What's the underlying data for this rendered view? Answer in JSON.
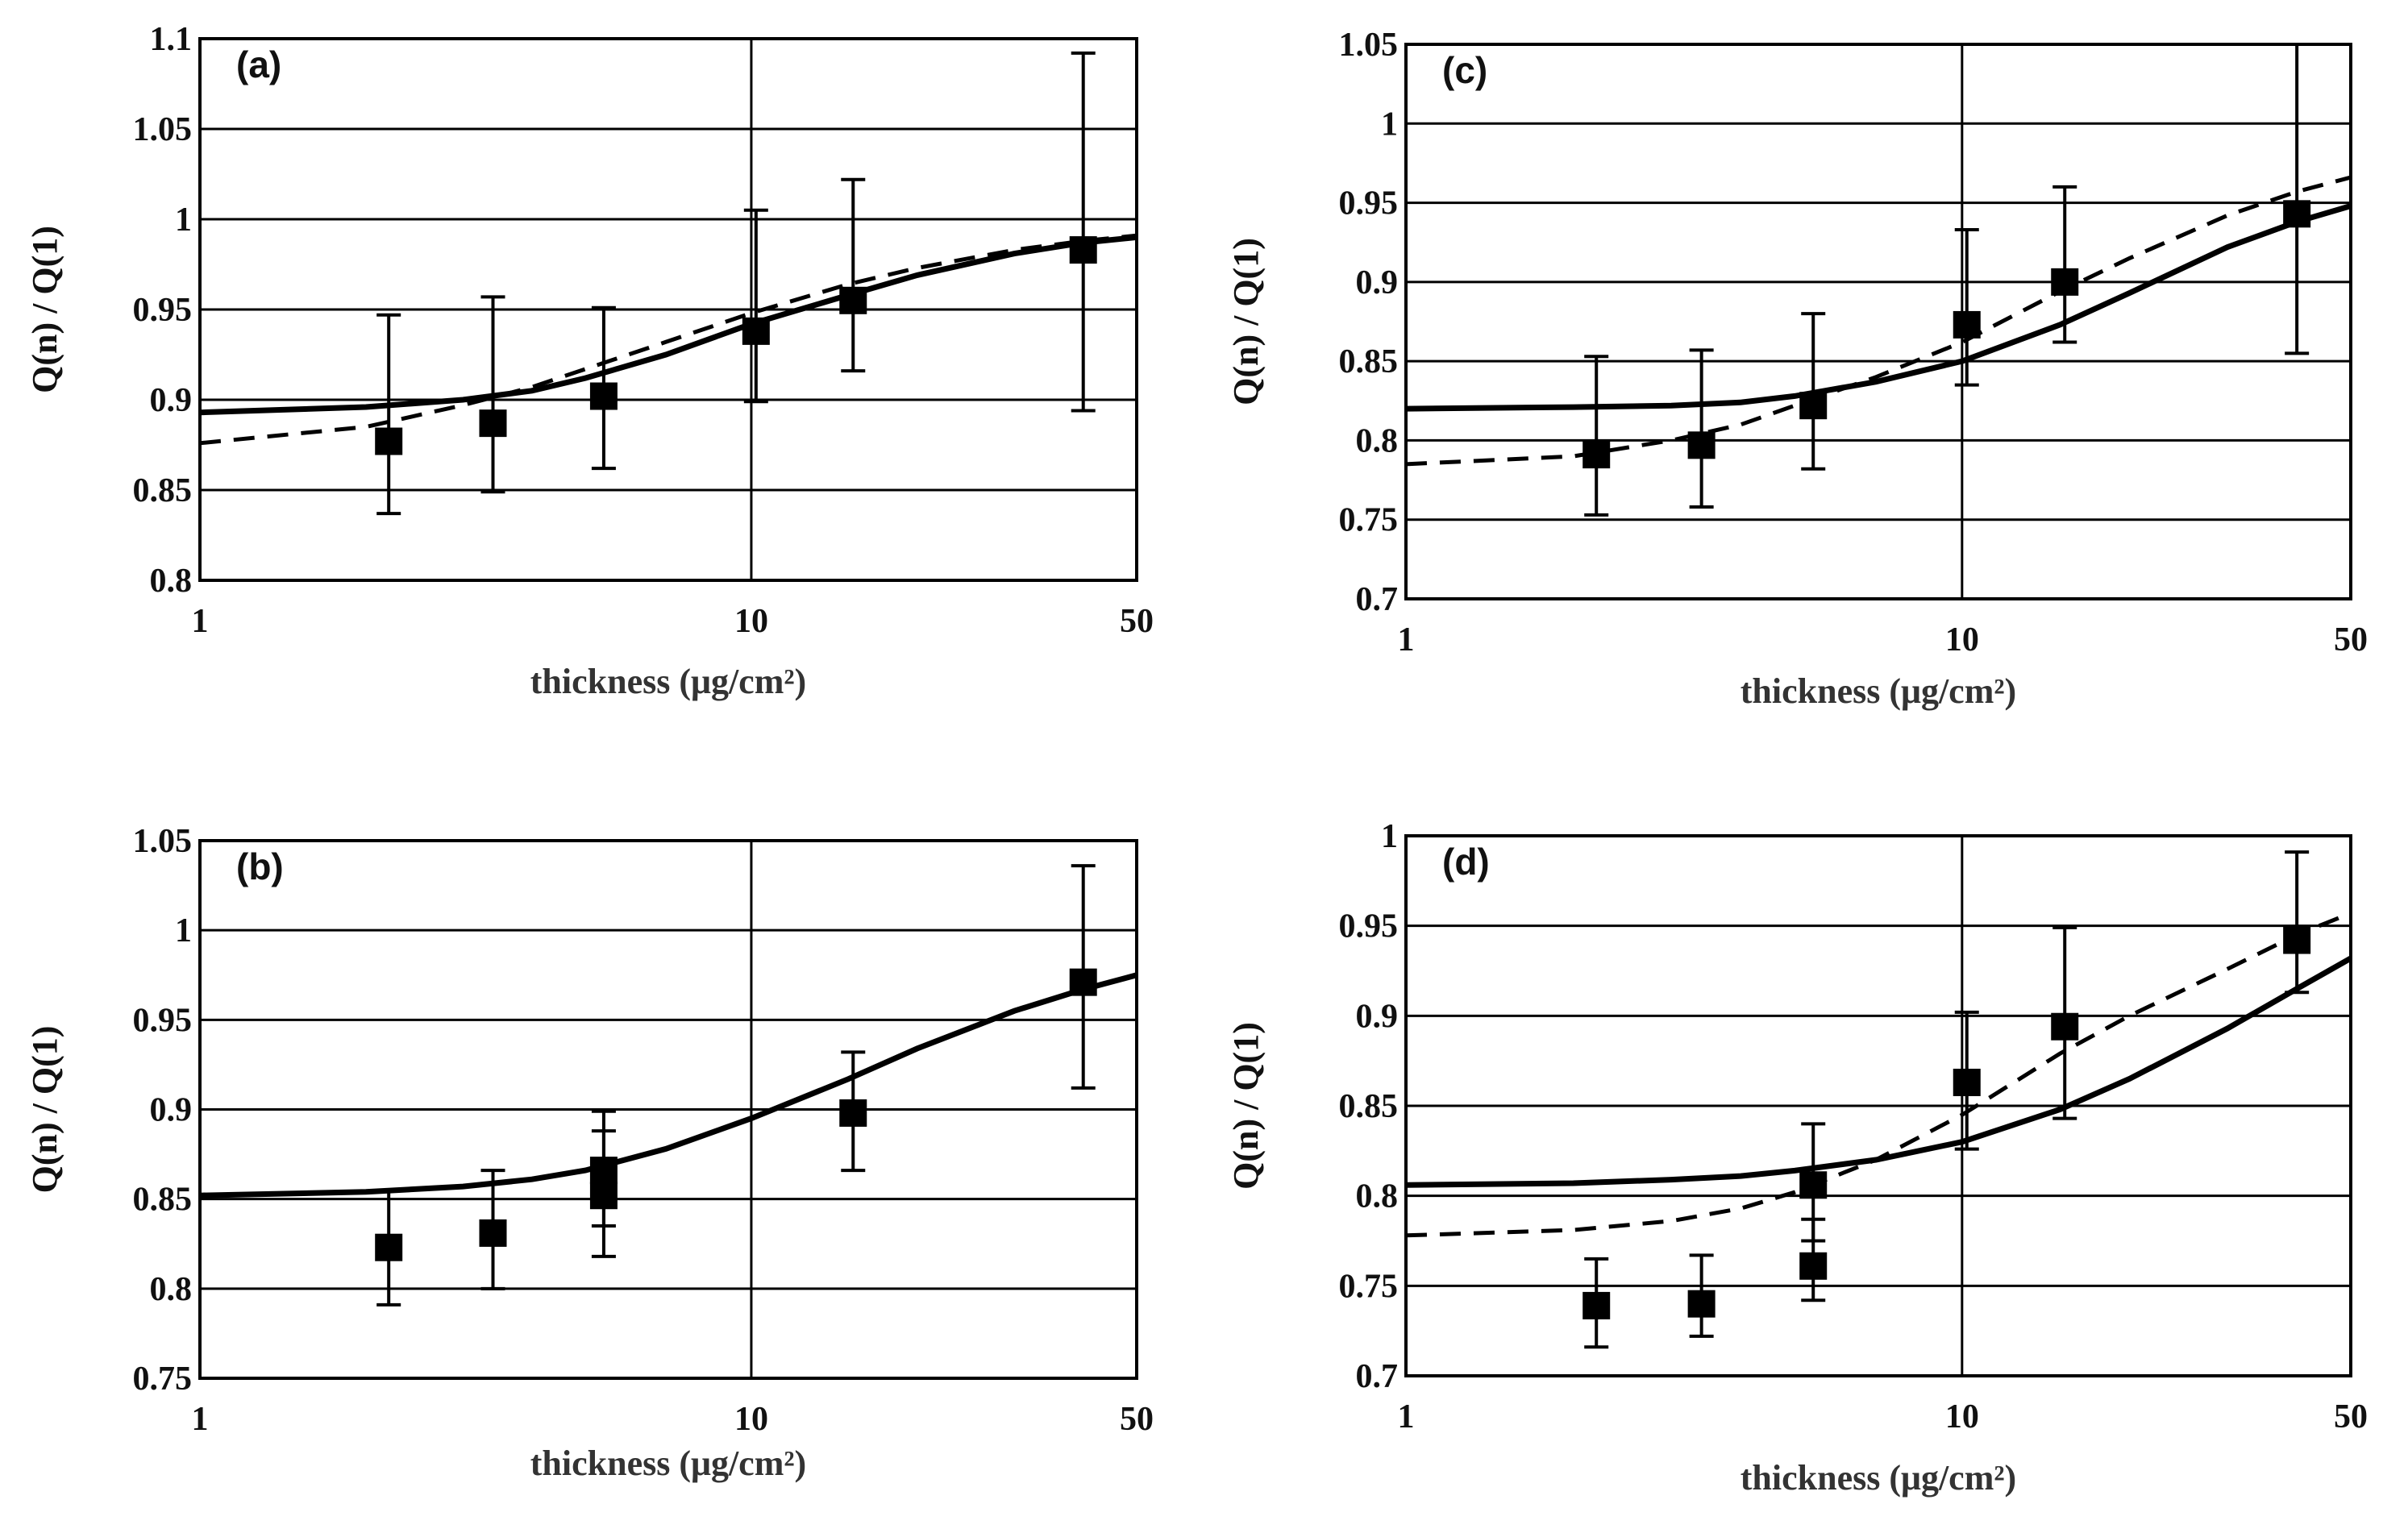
{
  "chart_data": [
    {
      "type": "scatter",
      "panel_label": "(a)",
      "xlabel": "thickness (μg/cm²)",
      "ylabel": "Q(n) / Q(1)",
      "xscale": "log",
      "xlim": [
        1,
        50
      ],
      "ylim": [
        0.8,
        1.1
      ],
      "xticks": [
        1,
        10,
        50
      ],
      "xtick_labels": [
        "1",
        "10",
        "50"
      ],
      "yticks": [
        0.8,
        0.85,
        0.9,
        0.95,
        1,
        1.05,
        1.1
      ],
      "ytick_labels": [
        "0.8",
        "0.85",
        "0.9",
        "0.95",
        "1",
        "1.05",
        "1.1"
      ],
      "grid": true,
      "points": {
        "x": [
          2.2,
          3.4,
          5.4,
          10.2,
          15.3,
          40.0
        ],
        "y": [
          0.877,
          0.887,
          0.902,
          0.938,
          0.955,
          0.983
        ],
        "err_low": [
          0.837,
          0.849,
          0.862,
          0.899,
          0.916,
          0.894
        ],
        "err_high": [
          0.947,
          0.957,
          0.951,
          1.005,
          1.022,
          1.092
        ]
      },
      "series": [
        {
          "name": "solid",
          "x": [
            1,
            2,
            3,
            4,
            5,
            7,
            10,
            15,
            20,
            30,
            40,
            50
          ],
          "y": [
            0.893,
            0.896,
            0.9,
            0.905,
            0.912,
            0.925,
            0.942,
            0.958,
            0.969,
            0.981,
            0.987,
            0.99
          ]
        },
        {
          "name": "dashed",
          "x": [
            1,
            2,
            3,
            4,
            5,
            7,
            10,
            15,
            20,
            30,
            40,
            50
          ],
          "y": [
            0.876,
            0.885,
            0.897,
            0.907,
            0.917,
            0.932,
            0.948,
            0.964,
            0.973,
            0.983,
            0.988,
            0.991
          ]
        }
      ]
    },
    {
      "type": "scatter",
      "panel_label": "(b)",
      "xlabel": "thickness (μg/cm²)",
      "ylabel": "Q(n) / Q(1)",
      "xscale": "log",
      "xlim": [
        1,
        50
      ],
      "ylim": [
        0.75,
        1.05
      ],
      "xticks": [
        1,
        10,
        50
      ],
      "xtick_labels": [
        "1",
        "10",
        "50"
      ],
      "yticks": [
        0.75,
        0.8,
        0.85,
        0.9,
        0.95,
        1,
        1.05
      ],
      "ytick_labels": [
        "0.75",
        "0.8",
        "0.85",
        "0.9",
        "0.95",
        "1",
        "1.05"
      ],
      "grid": true,
      "points": {
        "x": [
          2.2,
          3.4,
          5.4,
          5.4,
          15.3,
          40.0
        ],
        "y": [
          0.823,
          0.831,
          0.852,
          0.866,
          0.898,
          0.971
        ],
        "err_low": [
          0.791,
          0.8,
          0.818,
          0.835,
          0.866,
          0.912
        ],
        "err_high": [
          0.855,
          0.866,
          0.888,
          0.899,
          0.932,
          1.036
        ]
      },
      "series": [
        {
          "name": "solid",
          "x": [
            1,
            2,
            3,
            4,
            5,
            7,
            10,
            15,
            20,
            30,
            40,
            50
          ],
          "y": [
            0.852,
            0.854,
            0.857,
            0.861,
            0.866,
            0.878,
            0.895,
            0.917,
            0.934,
            0.955,
            0.967,
            0.975
          ]
        }
      ]
    },
    {
      "type": "scatter",
      "panel_label": "(c)",
      "xlabel": "thickness (μg/cm²)",
      "ylabel": "Q(n) / Q(1)",
      "xscale": "log",
      "xlim": [
        1,
        50
      ],
      "ylim": [
        0.7,
        1.05
      ],
      "xticks": [
        1,
        10,
        50
      ],
      "xtick_labels": [
        "1",
        "10",
        "50"
      ],
      "yticks": [
        0.7,
        0.75,
        0.8,
        0.85,
        0.9,
        0.95,
        1,
        1.05
      ],
      "ytick_labels": [
        "0.7",
        "0.75",
        "0.8",
        "0.85",
        "0.9",
        "0.95",
        "1",
        "1.05"
      ],
      "grid": true,
      "points": {
        "x": [
          2.2,
          3.4,
          5.4,
          10.2,
          15.3,
          40.0
        ],
        "y": [
          0.791,
          0.797,
          0.822,
          0.873,
          0.9,
          0.943
        ],
        "err_low": [
          0.753,
          0.758,
          0.782,
          0.835,
          0.862,
          0.855
        ],
        "err_high": [
          0.853,
          0.857,
          0.88,
          0.933,
          0.96,
          1.05
        ]
      },
      "series": [
        {
          "name": "solid",
          "x": [
            1,
            2,
            3,
            4,
            5,
            7,
            10,
            15,
            20,
            30,
            40,
            50
          ],
          "y": [
            0.82,
            0.821,
            0.822,
            0.824,
            0.828,
            0.837,
            0.85,
            0.873,
            0.893,
            0.922,
            0.938,
            0.948
          ]
        },
        {
          "name": "dashed",
          "x": [
            1,
            2,
            3,
            4,
            5,
            7,
            10,
            15,
            20,
            30,
            40,
            50
          ],
          "y": [
            0.785,
            0.79,
            0.8,
            0.81,
            0.822,
            0.84,
            0.862,
            0.894,
            0.915,
            0.942,
            0.957,
            0.966
          ]
        }
      ]
    },
    {
      "type": "scatter",
      "panel_label": "(d)",
      "xlabel": "thickness (μg/cm²)",
      "ylabel": "Q(n) / Q(1)",
      "xscale": "log",
      "xlim": [
        1,
        50
      ],
      "ylim": [
        0.7,
        1
      ],
      "xticks": [
        1,
        10,
        50
      ],
      "xtick_labels": [
        "1",
        "10",
        "50"
      ],
      "yticks": [
        0.7,
        0.75,
        0.8,
        0.85,
        0.9,
        0.95,
        1
      ],
      "ytick_labels": [
        "0.7",
        "0.75",
        "0.8",
        "0.85",
        "0.9",
        "0.95",
        "1"
      ],
      "grid": true,
      "points": {
        "x": [
          2.2,
          3.4,
          5.4,
          5.4,
          10.2,
          15.3,
          40.0
        ],
        "y": [
          0.739,
          0.74,
          0.761,
          0.806,
          0.863,
          0.894,
          0.942
        ],
        "err_low": [
          0.716,
          0.722,
          0.742,
          0.775,
          0.826,
          0.843,
          0.913
        ],
        "err_high": [
          0.765,
          0.767,
          0.787,
          0.84,
          0.902,
          0.949,
          0.991
        ]
      },
      "series": [
        {
          "name": "solid",
          "x": [
            1,
            2,
            3,
            4,
            5,
            7,
            10,
            15,
            20,
            30,
            40,
            50
          ],
          "y": [
            0.806,
            0.807,
            0.809,
            0.811,
            0.814,
            0.82,
            0.83,
            0.848,
            0.865,
            0.893,
            0.915,
            0.932
          ]
        },
        {
          "name": "dashed",
          "x": [
            1,
            2,
            3,
            4,
            5,
            7,
            10,
            15,
            20,
            30,
            40,
            50
          ],
          "y": [
            0.778,
            0.781,
            0.786,
            0.793,
            0.802,
            0.82,
            0.845,
            0.879,
            0.9,
            0.926,
            0.945,
            0.957
          ]
        }
      ]
    }
  ]
}
